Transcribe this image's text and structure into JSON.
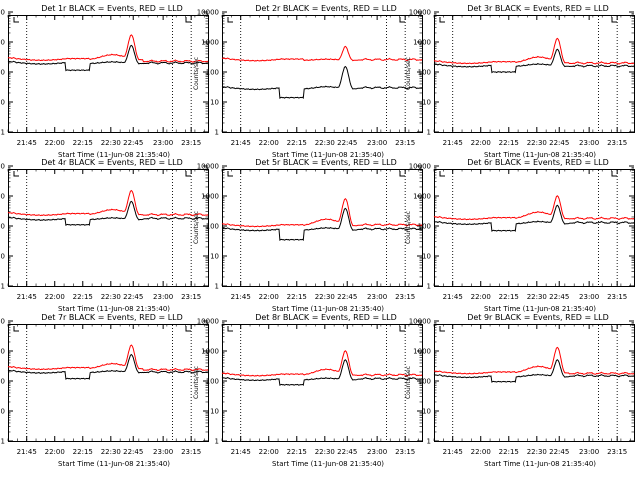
{
  "figure": {
    "background": "#ffffff"
  },
  "colors": {
    "events": "#000000",
    "lld": "#ff0000",
    "axis": "#000000"
  },
  "common": {
    "xlabel": "Start Time (11-Jun-08 21:35:40)",
    "ylabel": "Counts/sec",
    "xticks": [
      "21:45",
      "22:00",
      "22:15",
      "22:30",
      "22:45",
      "23:00",
      "23:15"
    ],
    "yticks": [
      "1",
      "10",
      "100",
      "1000",
      "10000"
    ]
  },
  "chart_data": [
    {
      "type": "line",
      "title": "Det 1r BLACK = Events, RED = LLD",
      "xlabel": "Start Time (11-Jun-08 21:35:40)",
      "ylabel": "Counts/sec",
      "xlim_minutes": [
        0,
        107
      ],
      "ylim": [
        1,
        15000
      ],
      "yscale": "log",
      "dotted_lines_at_minutes": [
        10,
        88,
        98
      ],
      "series": [
        {
          "name": "Events",
          "color": "#000000",
          "base": 210,
          "dip_start": 31,
          "dip_end": 44,
          "dip_value": 115,
          "bump_center": 56,
          "bump_amp": 0.15,
          "peak_center": 66,
          "peak_value": 760,
          "end_value": 200
        },
        {
          "name": "LLD",
          "color": "#ff0000",
          "base": 280,
          "dip_start": 31,
          "dip_end": 44,
          "dip_value": 280,
          "bump_center": 56,
          "bump_amp": 0.5,
          "peak_center": 66,
          "peak_value": 1700,
          "end_value": 230
        }
      ]
    },
    {
      "type": "line",
      "title": "Det 2r BLACK = Events, RED = LLD",
      "xlabel": "Start Time (11-Jun-08 21:35:40)",
      "ylabel": "Counts/sec",
      "xlim_minutes": [
        0,
        107
      ],
      "ylim": [
        1,
        15000
      ],
      "yscale": "log",
      "dotted_lines_at_minutes": [
        10,
        88,
        98
      ],
      "series": [
        {
          "name": "Events",
          "color": "#000000",
          "base": 30,
          "dip_start": 31,
          "dip_end": 44,
          "dip_value": 14,
          "bump_center": 56,
          "bump_amp": 0.2,
          "peak_center": 66,
          "peak_value": 150,
          "end_value": 30
        },
        {
          "name": "LLD",
          "color": "#ff0000",
          "base": 270,
          "dip_start": 31,
          "dip_end": 44,
          "dip_value": 270,
          "bump_center": 56,
          "bump_amp": 0.1,
          "peak_center": 66,
          "peak_value": 700,
          "end_value": 260
        }
      ]
    },
    {
      "type": "line",
      "title": "Det 3r BLACK = Events, RED = LLD",
      "xlabel": "Start Time (11-Jun-08 21:35:40)",
      "ylabel": "Counts/sec",
      "xlim_minutes": [
        0,
        107
      ],
      "ylim": [
        1,
        15000
      ],
      "yscale": "log",
      "dotted_lines_at_minutes": [
        10,
        88,
        98
      ],
      "series": [
        {
          "name": "Events",
          "color": "#000000",
          "base": 170,
          "dip_start": 31,
          "dip_end": 44,
          "dip_value": 100,
          "bump_center": 56,
          "bump_amp": 0.2,
          "peak_center": 66,
          "peak_value": 560,
          "end_value": 160
        },
        {
          "name": "LLD",
          "color": "#ff0000",
          "base": 220,
          "dip_start": 31,
          "dip_end": 44,
          "dip_value": 220,
          "bump_center": 56,
          "bump_amp": 0.6,
          "peak_center": 66,
          "peak_value": 1300,
          "end_value": 200
        }
      ]
    },
    {
      "type": "line",
      "title": "Det 4r BLACK = Events, RED = LLD",
      "xlabel": "Start Time (11-Jun-08 21:35:40)",
      "ylabel": "Counts/sec",
      "xlim_minutes": [
        0,
        107
      ],
      "ylim": [
        1,
        15000
      ],
      "yscale": "log",
      "dotted_lines_at_minutes": [
        10,
        88,
        98
      ],
      "series": [
        {
          "name": "Events",
          "color": "#000000",
          "base": 180,
          "dip_start": 31,
          "dip_end": 44,
          "dip_value": 110,
          "bump_center": 56,
          "bump_amp": 0.15,
          "peak_center": 66,
          "peak_value": 650,
          "end_value": 180
        },
        {
          "name": "LLD",
          "color": "#ff0000",
          "base": 260,
          "dip_start": 31,
          "dip_end": 44,
          "dip_value": 260,
          "bump_center": 56,
          "bump_amp": 0.5,
          "peak_center": 66,
          "peak_value": 1500,
          "end_value": 240
        }
      ]
    },
    {
      "type": "line",
      "title": "Det 5r BLACK = Events, RED = LLD",
      "xlabel": "Start Time (11-Jun-08 21:35:40)",
      "ylabel": "Counts/sec",
      "xlim_minutes": [
        0,
        107
      ],
      "ylim": [
        1,
        15000
      ],
      "yscale": "log",
      "dotted_lines_at_minutes": [
        10,
        88,
        98
      ],
      "series": [
        {
          "name": "Events",
          "color": "#000000",
          "base": 80,
          "dip_start": 31,
          "dip_end": 44,
          "dip_value": 35,
          "bump_center": 56,
          "bump_amp": 0.2,
          "peak_center": 66,
          "peak_value": 380,
          "end_value": 80
        },
        {
          "name": "LLD",
          "color": "#ff0000",
          "base": 110,
          "dip_start": 31,
          "dip_end": 44,
          "dip_value": 110,
          "bump_center": 56,
          "bump_amp": 0.7,
          "peak_center": 66,
          "peak_value": 800,
          "end_value": 110
        }
      ]
    },
    {
      "type": "line",
      "title": "Det 6r BLACK = Events, RED = LLD",
      "xlabel": "Start Time (11-Jun-08 21:35:40)",
      "ylabel": "Counts/sec",
      "xlim_minutes": [
        0,
        107
      ],
      "ylim": [
        1,
        15000
      ],
      "yscale": "log",
      "dotted_lines_at_minutes": [
        10,
        88,
        98
      ],
      "series": [
        {
          "name": "Events",
          "color": "#000000",
          "base": 130,
          "dip_start": 31,
          "dip_end": 44,
          "dip_value": 70,
          "bump_center": 56,
          "bump_amp": 0.2,
          "peak_center": 66,
          "peak_value": 480,
          "end_value": 130
        },
        {
          "name": "LLD",
          "color": "#ff0000",
          "base": 190,
          "dip_start": 31,
          "dip_end": 44,
          "dip_value": 190,
          "bump_center": 56,
          "bump_amp": 0.7,
          "peak_center": 66,
          "peak_value": 1000,
          "end_value": 180
        }
      ]
    },
    {
      "type": "line",
      "title": "Det 7r BLACK = Events, RED = LLD",
      "xlabel": "Start Time (11-Jun-08 21:35:40)",
      "ylabel": "Counts/sec",
      "xlim_minutes": [
        0,
        107
      ],
      "ylim": [
        1,
        15000
      ],
      "yscale": "log",
      "dotted_lines_at_minutes": [
        10,
        88,
        98
      ],
      "series": [
        {
          "name": "Events",
          "color": "#000000",
          "base": 210,
          "dip_start": 31,
          "dip_end": 44,
          "dip_value": 120,
          "bump_center": 56,
          "bump_amp": 0.15,
          "peak_center": 66,
          "peak_value": 750,
          "end_value": 200
        },
        {
          "name": "LLD",
          "color": "#ff0000",
          "base": 280,
          "dip_start": 31,
          "dip_end": 44,
          "dip_value": 280,
          "bump_center": 56,
          "bump_amp": 0.5,
          "peak_center": 66,
          "peak_value": 1550,
          "end_value": 240
        }
      ]
    },
    {
      "type": "line",
      "title": "Det 8r BLACK = Events, RED = LLD",
      "xlabel": "Start Time (11-Jun-08 21:35:40)",
      "ylabel": "Counts/sec",
      "xlim_minutes": [
        0,
        107
      ],
      "ylim": [
        1,
        15000
      ],
      "yscale": "log",
      "dotted_lines_at_minutes": [
        10,
        88,
        98
      ],
      "series": [
        {
          "name": "Events",
          "color": "#000000",
          "base": 120,
          "dip_start": 31,
          "dip_end": 44,
          "dip_value": 75,
          "bump_center": 56,
          "bump_amp": 0.15,
          "peak_center": 66,
          "peak_value": 500,
          "end_value": 120
        },
        {
          "name": "LLD",
          "color": "#ff0000",
          "base": 170,
          "dip_start": 31,
          "dip_end": 44,
          "dip_value": 170,
          "bump_center": 56,
          "bump_amp": 0.6,
          "peak_center": 66,
          "peak_value": 1000,
          "end_value": 160
        }
      ]
    },
    {
      "type": "line",
      "title": "Det 9r BLACK = Events, RED = LLD",
      "xlabel": "Start Time (11-Jun-08 21:35:40)",
      "ylabel": "Counts/sec",
      "xlim_minutes": [
        0,
        107
      ],
      "ylim": [
        1,
        15000
      ],
      "yscale": "log",
      "dotted_lines_at_minutes": [
        10,
        88,
        98
      ],
      "series": [
        {
          "name": "Events",
          "color": "#000000",
          "base": 150,
          "dip_start": 31,
          "dip_end": 44,
          "dip_value": 95,
          "bump_center": 56,
          "bump_amp": 0.2,
          "peak_center": 66,
          "peak_value": 500,
          "end_value": 150
        },
        {
          "name": "LLD",
          "color": "#ff0000",
          "base": 200,
          "dip_start": 31,
          "dip_end": 44,
          "dip_value": 200,
          "bump_center": 56,
          "bump_amp": 0.7,
          "peak_center": 66,
          "peak_value": 1300,
          "end_value": 180
        }
      ]
    }
  ]
}
